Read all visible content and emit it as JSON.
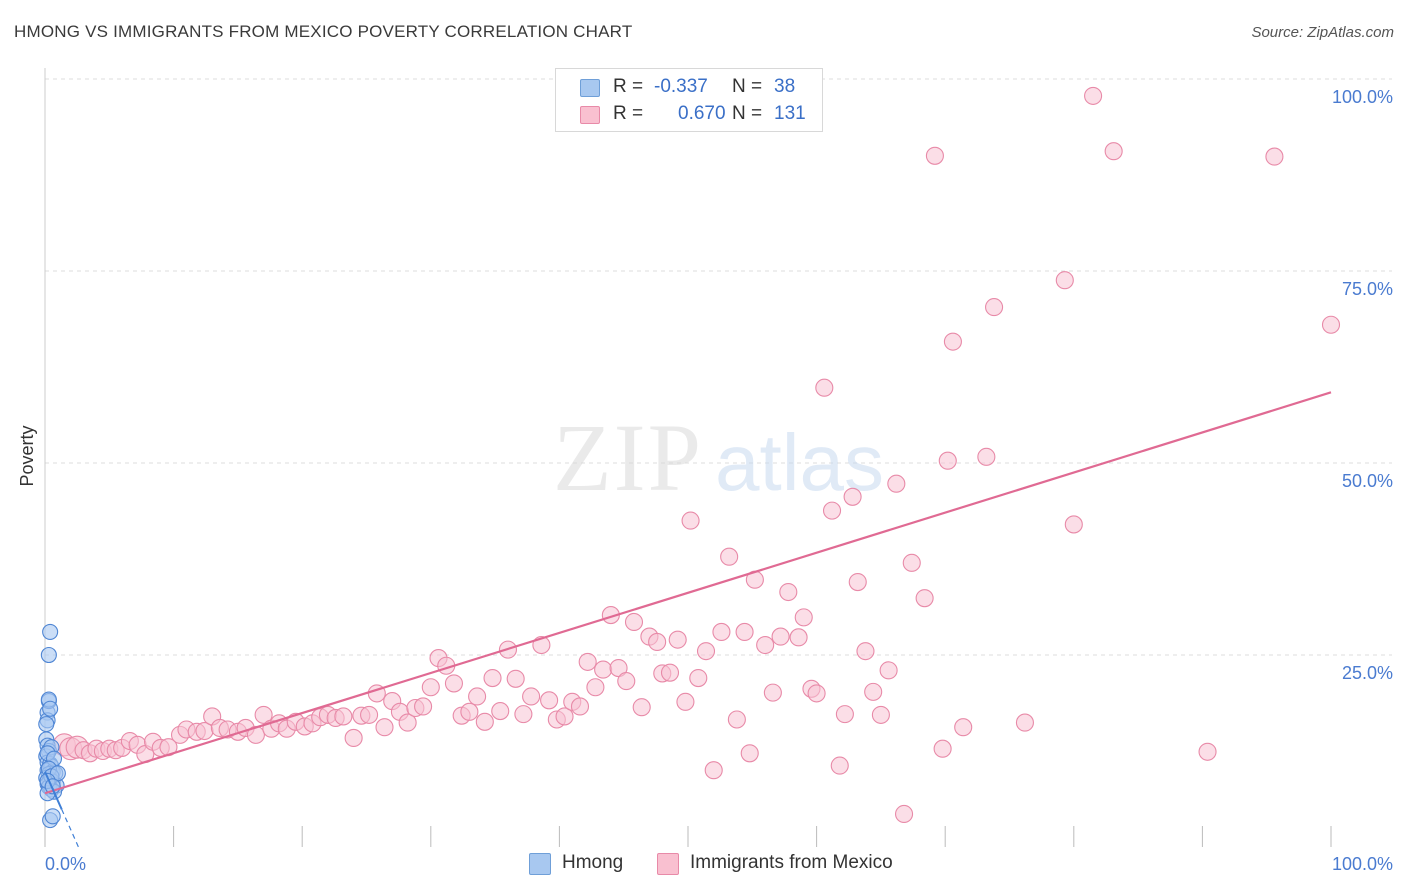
{
  "title": "HMONG VS IMMIGRANTS FROM MEXICO POVERTY CORRELATION CHART",
  "source": "Source: ZipAtlas.com",
  "watermark": {
    "zip": "ZIP",
    "atlas": "atlas"
  },
  "legend": {
    "r_label": "R =",
    "n_label": "N =",
    "rows": [
      {
        "r": "-0.337",
        "n": "38",
        "color": "#a8c8f0",
        "border": "#6f9fd8"
      },
      {
        "r": "0.670",
        "n": "131",
        "color": "#f9c0d0",
        "border": "#e88aa8"
      }
    ]
  },
  "bottom_legend": [
    "Hmong",
    "Immigrants from Mexico"
  ],
  "colors": {
    "hmong_fill": "#a9c8f1",
    "hmong_stroke": "#4f86d4",
    "mexico_fill": "#f7c3d3",
    "mexico_stroke": "#e88aa8",
    "mexico_line": "#e06a93",
    "hmong_line": "#3f7fd6",
    "tick_label": "#4a7bd0",
    "grid": "#dddddd"
  },
  "chart_data": {
    "type": "scatter",
    "title": "HMONG VS IMMIGRANTS FROM MEXICO POVERTY CORRELATION CHART",
    "xlabel": "",
    "ylabel": "Poverty",
    "xlim": [
      0,
      100
    ],
    "ylim": [
      0,
      100
    ],
    "x_tick_labels": [
      "0.0%",
      "100.0%"
    ],
    "y_ticks": [
      25,
      50,
      75,
      100
    ],
    "y_tick_labels": [
      "25.0%",
      "50.0%",
      "75.0%",
      "100.0%"
    ],
    "grid": true,
    "legend_position": "top-center",
    "series": [
      {
        "name": "Hmong",
        "r": -0.337,
        "n": 38,
        "trend": {
          "x": [
            0,
            2.6
          ],
          "y": [
            9.8,
            0
          ]
        },
        "points": [
          [
            0.2,
            17.5
          ],
          [
            0.3,
            19.0
          ],
          [
            0.2,
            16.5
          ],
          [
            0.4,
            28.0
          ],
          [
            0.3,
            25.0
          ],
          [
            0.1,
            14.0
          ],
          [
            0.2,
            13.2
          ],
          [
            0.3,
            12.5
          ],
          [
            0.1,
            11.8
          ],
          [
            0.2,
            11.0
          ],
          [
            0.4,
            10.8
          ],
          [
            0.5,
            10.5
          ],
          [
            0.2,
            10.0
          ],
          [
            0.6,
            9.8
          ],
          [
            0.3,
            9.5
          ],
          [
            0.8,
            9.6
          ],
          [
            0.1,
            9.0
          ],
          [
            0.4,
            8.8
          ],
          [
            0.6,
            8.5
          ],
          [
            0.2,
            8.2
          ],
          [
            0.9,
            8.0
          ],
          [
            0.3,
            7.8
          ],
          [
            0.5,
            7.5
          ],
          [
            0.7,
            7.2
          ],
          [
            0.2,
            7.0
          ],
          [
            0.4,
            3.5
          ],
          [
            0.6,
            4.0
          ],
          [
            0.3,
            19.2
          ],
          [
            0.4,
            18.0
          ],
          [
            0.1,
            16.0
          ],
          [
            0.5,
            13.0
          ],
          [
            0.2,
            12.2
          ],
          [
            0.7,
            11.5
          ],
          [
            0.3,
            10.2
          ],
          [
            0.5,
            9.2
          ],
          [
            1.0,
            9.6
          ],
          [
            0.2,
            8.6
          ],
          [
            0.6,
            7.9
          ]
        ]
      },
      {
        "name": "Immigrants from Mexico",
        "r": 0.67,
        "n": 131,
        "trend": {
          "x": [
            0,
            100
          ],
          "y": [
            7.0,
            59.2
          ]
        },
        "points": [
          [
            1.5,
            13.3
          ],
          [
            2.0,
            12.8
          ],
          [
            2.5,
            13.0
          ],
          [
            3.0,
            12.6
          ],
          [
            3.5,
            12.2
          ],
          [
            4.0,
            12.8
          ],
          [
            4.5,
            12.5
          ],
          [
            5.0,
            12.8
          ],
          [
            5.5,
            12.6
          ],
          [
            6.0,
            12.9
          ],
          [
            6.6,
            13.8
          ],
          [
            7.2,
            13.3
          ],
          [
            7.8,
            12.1
          ],
          [
            8.4,
            13.7
          ],
          [
            9.0,
            12.9
          ],
          [
            9.6,
            13.0
          ],
          [
            10.5,
            14.6
          ],
          [
            11.0,
            15.3
          ],
          [
            11.8,
            15.0
          ],
          [
            12.4,
            15.1
          ],
          [
            13.0,
            17.0
          ],
          [
            13.6,
            15.5
          ],
          [
            14.2,
            15.3
          ],
          [
            15.0,
            15.0
          ],
          [
            15.6,
            15.5
          ],
          [
            16.4,
            14.6
          ],
          [
            17.0,
            17.2
          ],
          [
            17.6,
            15.4
          ],
          [
            18.2,
            16.1
          ],
          [
            18.8,
            15.4
          ],
          [
            19.5,
            16.3
          ],
          [
            20.2,
            15.7
          ],
          [
            20.8,
            16.1
          ],
          [
            21.4,
            16.9
          ],
          [
            22.0,
            17.2
          ],
          [
            22.6,
            16.8
          ],
          [
            23.2,
            17.0
          ],
          [
            24.0,
            14.2
          ],
          [
            24.6,
            17.1
          ],
          [
            25.2,
            17.2
          ],
          [
            25.8,
            20.0
          ],
          [
            26.4,
            15.6
          ],
          [
            27.0,
            19.0
          ],
          [
            27.6,
            17.6
          ],
          [
            28.2,
            16.2
          ],
          [
            28.8,
            18.1
          ],
          [
            29.4,
            18.3
          ],
          [
            30.0,
            20.8
          ],
          [
            30.6,
            24.6
          ],
          [
            31.2,
            23.6
          ],
          [
            31.8,
            21.3
          ],
          [
            32.4,
            17.1
          ],
          [
            33.0,
            17.6
          ],
          [
            33.6,
            19.6
          ],
          [
            34.2,
            16.3
          ],
          [
            34.8,
            22.0
          ],
          [
            35.4,
            17.7
          ],
          [
            36.0,
            25.7
          ],
          [
            36.6,
            21.9
          ],
          [
            37.2,
            17.3
          ],
          [
            37.8,
            19.6
          ],
          [
            38.6,
            26.3
          ],
          [
            39.2,
            19.1
          ],
          [
            39.8,
            16.6
          ],
          [
            40.4,
            17.0
          ],
          [
            41.0,
            18.9
          ],
          [
            41.6,
            18.3
          ],
          [
            42.2,
            24.1
          ],
          [
            42.8,
            20.8
          ],
          [
            43.4,
            23.1
          ],
          [
            44.0,
            30.2
          ],
          [
            44.6,
            23.3
          ],
          [
            45.2,
            21.6
          ],
          [
            45.8,
            29.3
          ],
          [
            46.4,
            18.2
          ],
          [
            47.0,
            27.4
          ],
          [
            47.6,
            26.7
          ],
          [
            48.0,
            22.6
          ],
          [
            48.6,
            22.7
          ],
          [
            49.2,
            27.0
          ],
          [
            49.8,
            18.9
          ],
          [
            50.2,
            42.5
          ],
          [
            50.8,
            22.0
          ],
          [
            51.4,
            25.5
          ],
          [
            52.0,
            10.0
          ],
          [
            52.6,
            28.0
          ],
          [
            53.2,
            37.8
          ],
          [
            53.8,
            16.6
          ],
          [
            54.4,
            28.0
          ],
          [
            54.8,
            12.2
          ],
          [
            55.2,
            34.8
          ],
          [
            56.0,
            26.3
          ],
          [
            56.6,
            20.1
          ],
          [
            57.2,
            27.4
          ],
          [
            57.8,
            33.2
          ],
          [
            58.6,
            27.3
          ],
          [
            59.0,
            29.9
          ],
          [
            59.6,
            20.6
          ],
          [
            60.0,
            20.0
          ],
          [
            60.6,
            59.8
          ],
          [
            61.2,
            43.8
          ],
          [
            61.8,
            10.6
          ],
          [
            62.2,
            17.3
          ],
          [
            62.8,
            45.6
          ],
          [
            63.2,
            34.5
          ],
          [
            63.8,
            25.5
          ],
          [
            64.4,
            20.2
          ],
          [
            65.0,
            17.2
          ],
          [
            65.6,
            23.0
          ],
          [
            66.2,
            47.3
          ],
          [
            66.8,
            4.3
          ],
          [
            67.4,
            37.0
          ],
          [
            68.4,
            32.4
          ],
          [
            69.2,
            90.0
          ],
          [
            69.8,
            12.8
          ],
          [
            70.2,
            50.3
          ],
          [
            70.6,
            65.8
          ],
          [
            71.4,
            15.6
          ],
          [
            73.2,
            50.8
          ],
          [
            73.8,
            70.3
          ],
          [
            76.2,
            16.2
          ],
          [
            79.3,
            73.8
          ],
          [
            80.0,
            42.0
          ],
          [
            81.5,
            97.8
          ],
          [
            83.1,
            90.6
          ],
          [
            90.4,
            12.4
          ],
          [
            95.6,
            89.9
          ],
          [
            100.0,
            68.0
          ]
        ]
      }
    ]
  }
}
